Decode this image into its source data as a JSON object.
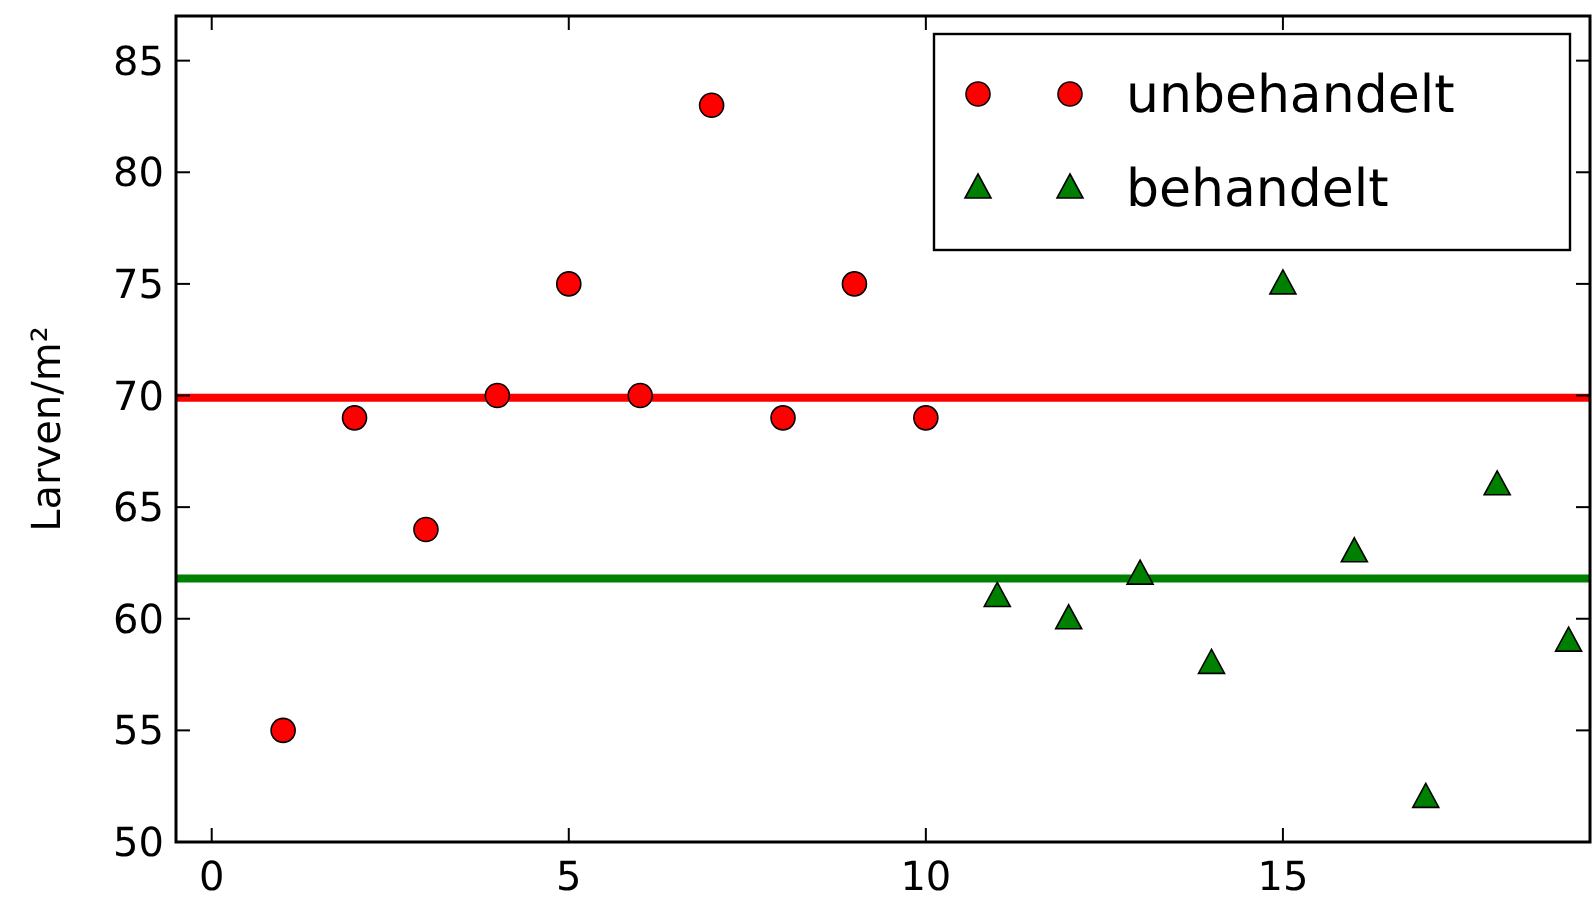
{
  "chart_data": {
    "type": "scatter",
    "ylabel": "Larven/m²",
    "xlim": [
      -0.5,
      19.3
    ],
    "ylim": [
      50,
      87
    ],
    "xticks": [
      0,
      5,
      10,
      15
    ],
    "yticks": [
      50,
      55,
      60,
      65,
      70,
      75,
      80,
      85
    ],
    "grid": false,
    "legend": "top right",
    "series": [
      {
        "name": "unbehandelt",
        "color": "#ff0000",
        "marker": "circle",
        "x": [
          1,
          2,
          3,
          4,
          5,
          6,
          7,
          8,
          9,
          10
        ],
        "values": [
          55,
          69,
          64,
          70,
          75,
          70,
          83,
          69,
          75,
          69
        ]
      },
      {
        "name": "behandelt",
        "color": "#008000",
        "marker": "triangle",
        "x": [
          11,
          12,
          13,
          14,
          15,
          16,
          17,
          18,
          19
        ],
        "values": [
          61,
          60,
          62,
          58,
          75,
          63,
          52,
          66,
          59
        ]
      }
    ],
    "ref_lines": [
      {
        "axis": "y",
        "value": 69.9,
        "color": "#ff0000"
      },
      {
        "axis": "y",
        "value": 61.8,
        "color": "#008000"
      }
    ]
  }
}
